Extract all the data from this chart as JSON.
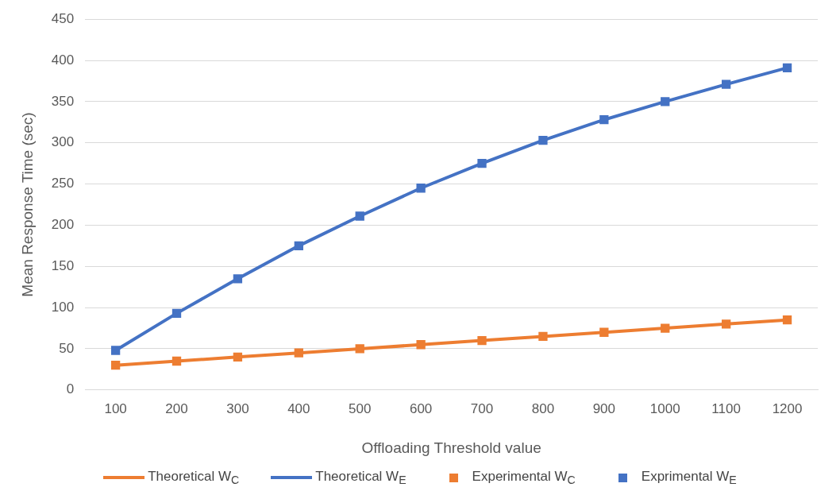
{
  "chart_data": {
    "type": "line",
    "xlabel": "Offloading Threshold value",
    "ylabel": "Mean Response Time (sec)",
    "categories": [
      "100",
      "200",
      "300",
      "400",
      "500",
      "600",
      "700",
      "800",
      "900",
      "1000",
      "1100",
      "1200"
    ],
    "series": [
      {
        "name": "Theoretical W$_{C}$",
        "marker": "none",
        "color": "#ed7d31",
        "values": [
          30,
          35,
          40,
          45,
          50,
          55,
          60,
          65,
          70,
          75,
          80,
          85
        ]
      },
      {
        "name": "Theoretical W$_{E}$",
        "marker": "none",
        "color": "#4472c4",
        "values": [
          48,
          93,
          135,
          175,
          211,
          245,
          275,
          303,
          328,
          350,
          371,
          391
        ]
      },
      {
        "name": "Experimental W$_{C}$",
        "type": "scatter",
        "marker": "square",
        "color": "#ed7d31",
        "values": [
          30,
          35,
          40,
          45,
          50,
          55,
          60,
          65,
          70,
          75,
          80,
          85
        ]
      },
      {
        "name": "Exprimental W$_{E}$",
        "type": "scatter",
        "marker": "square",
        "color": "#4472c4",
        "values": [
          48,
          93,
          135,
          175,
          211,
          245,
          275,
          303,
          328,
          350,
          371,
          391
        ]
      }
    ],
    "ylim": [
      0,
      450
    ],
    "yticks": [
      0,
      50,
      100,
      150,
      200,
      250,
      300,
      350,
      400,
      450
    ],
    "grid": "y",
    "legend": "bottom"
  }
}
